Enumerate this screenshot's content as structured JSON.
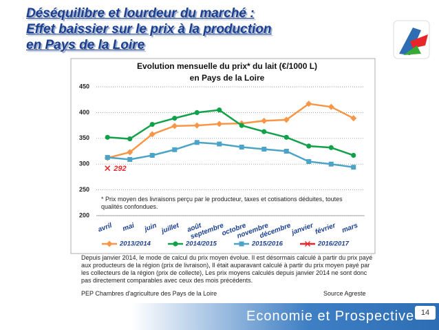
{
  "title_lines": [
    "Déséquilibre et lourdeur du marché :",
    "Effet baissier sur le prix à la production",
    "en Pays de la Loire"
  ],
  "chart_data": {
    "type": "line",
    "title": "Evolution mensuelle du prix* du lait (€/1000 L)",
    "subtitle": "en Pays de la Loire",
    "categories": [
      "avril",
      "mai",
      "juin",
      "juillet",
      "août",
      "septembre",
      "octobre",
      "novembre",
      "décembre",
      "janvier",
      "février",
      "mars"
    ],
    "series": [
      {
        "name": "2013/2014",
        "color": "#f79646",
        "marker": "diamond",
        "values": [
          312,
          323,
          358,
          374,
          375,
          378,
          379,
          384,
          386,
          417,
          411,
          389
        ]
      },
      {
        "name": "2014/2015",
        "color": "#12a14b",
        "marker": "circle",
        "values": [
          352,
          349,
          377,
          389,
          400,
          405,
          375,
          363,
          352,
          335,
          332,
          317
        ]
      },
      {
        "name": "2015/2016",
        "color": "#4ba3c8",
        "marker": "square",
        "values": [
          313,
          309,
          317,
          328,
          342,
          339,
          333,
          329,
          325,
          305,
          300,
          294
        ]
      },
      {
        "name": "2016/2017",
        "color": "#e8262a",
        "marker": "x",
        "values": [
          292,
          null,
          null,
          null,
          null,
          null,
          null,
          null,
          null,
          null,
          null,
          null
        ],
        "value_labels": [
          "292",
          null,
          null,
          null,
          null,
          null,
          null,
          null,
          null,
          null,
          null,
          null
        ]
      }
    ],
    "ylim": [
      200,
      450
    ],
    "yticks": [
      200,
      250,
      300,
      350,
      400,
      450
    ],
    "grid": true,
    "legend": "bottom",
    "note": "* Prix moyen des livraisons perçu par le producteur, taxes et cotisations déduites, toutes qualités confondues."
  },
  "description": "Depuis janvier 2014, le mode de calcul du prix moyen évolue. Il est désormais calculé à partir du prix payé aux producteurs de la région (prix de livraison), Il était auparavant calculé à partir du prix moyen payé par les collecteurs de la région (prix de collecte), Les prix moyens calculés depuis janvier 2014 ne sont donc pas directement comparables avec ceux des mois précédents.",
  "footer": {
    "left": "PEP Chambres d'agriculture des Pays de la Loire",
    "right": "Source Agreste"
  },
  "banner": "Economie et Prospective",
  "page_number": "14"
}
